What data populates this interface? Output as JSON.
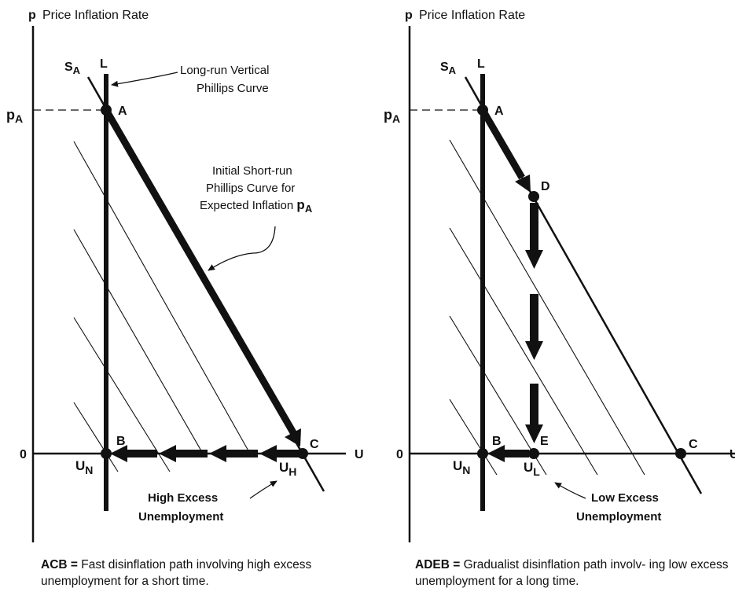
{
  "colors": {
    "ink": "#111111",
    "background": "#ffffff"
  },
  "left_panel": {
    "y_axis_label": "Price Inflation Rate",
    "y_axis_symbol": "p",
    "x_axis_symbol": "U",
    "origin_label": "0",
    "pA_label": "p",
    "pA_sub": "A",
    "SA_label": "S",
    "SA_sub": "A",
    "L_label": "L",
    "points": {
      "A": "A",
      "B": "B",
      "C": "C"
    },
    "UN_label": "U",
    "UN_sub": "N",
    "UH_label": "U",
    "UH_sub": "H",
    "long_run_note": [
      "Long-run Vertical",
      "Phillips Curve"
    ],
    "short_run_note": [
      "Initial Short-run",
      "Phillips Curve for",
      "Expected Inflation"
    ],
    "short_run_note_symbol": "p",
    "short_run_note_symbol_sub": "A",
    "excess_note": [
      "High Excess",
      "Unemployment"
    ],
    "caption_key": "ACB =",
    "caption_text": "Fast disinflation path involving high excess unemployment for a short time."
  },
  "right_panel": {
    "y_axis_label": "Price Inflation Rate",
    "y_axis_symbol": "p",
    "x_axis_symbol": "U",
    "origin_label": "0",
    "pA_label": "p",
    "pA_sub": "A",
    "SA_label": "S",
    "SA_sub": "A",
    "L_label": "L",
    "points": {
      "A": "A",
      "B": "B",
      "C": "C",
      "D": "D",
      "E": "E"
    },
    "UN_label": "U",
    "UN_sub": "N",
    "UL_label": "U",
    "UL_sub": "L",
    "excess_note": [
      "Low Excess",
      "Unemployment"
    ],
    "caption_key": "ADEB =",
    "caption_text": "Gradualist disinflation path involv- ing low excess unemployment for a long time."
  }
}
